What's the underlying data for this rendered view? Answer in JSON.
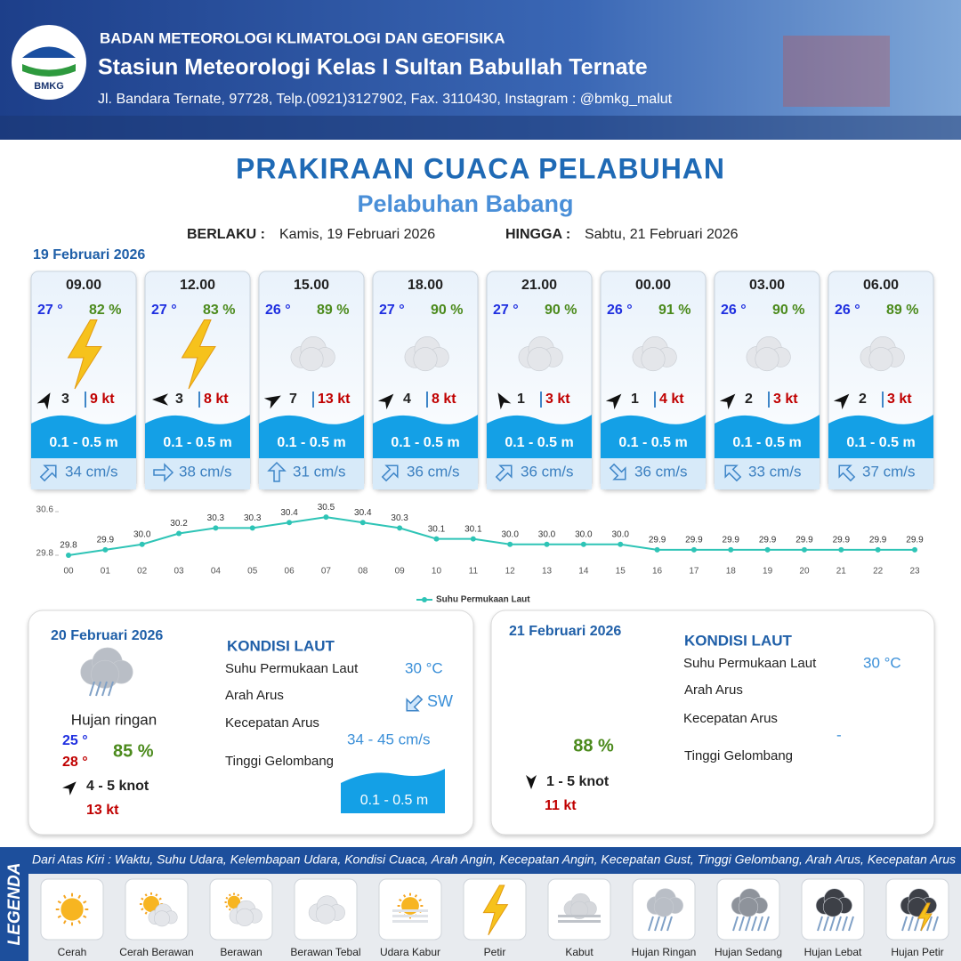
{
  "header": {
    "agency": "BADAN METEOROLOGI KLIMATOLOGI DAN GEOFISIKA",
    "station": "Stasiun Meteorologi Kelas I Sultan Babullah Ternate",
    "address": "Jl. Bandara Ternate, 97728, Telp.(0921)3127902, Fax. 3110430, Instagram : @bmkg_malut",
    "logo_text": "BMKG"
  },
  "title": "PRAKIRAAN CUACA PELABUHAN",
  "subtitle": "Pelabuhan Babang",
  "validity": {
    "from_label": "BERLAKU :",
    "from": "Kamis, 19 Februari 2026",
    "to_label": "HINGGA :",
    "to": "Sabtu, 21 Februari 2026"
  },
  "day1": {
    "date": "19 Februari 2026",
    "forecasts": [
      {
        "time": "09.00",
        "temp": "27 °",
        "humidity": "82 %",
        "wind": "3",
        "gust": "9 kt",
        "wave": "0.1 - 0.5 m",
        "current": "34 cm/s"
      },
      {
        "time": "12.00",
        "temp": "27 °",
        "humidity": "83 %",
        "wind": "3",
        "gust": "8 kt",
        "wave": "0.1 - 0.5 m",
        "current": "38 cm/s"
      },
      {
        "time": "15.00",
        "temp": "26 °",
        "humidity": "89 %",
        "wind": "7",
        "gust": "13 kt",
        "wave": "0.1 - 0.5 m",
        "current": "31 cm/s"
      },
      {
        "time": "18.00",
        "temp": "27 °",
        "humidity": "90 %",
        "wind": "4",
        "gust": "8 kt",
        "wave": "0.1 - 0.5 m",
        "current": "36 cm/s"
      },
      {
        "time": "21.00",
        "temp": "27 °",
        "humidity": "90 %",
        "wind": "1",
        "gust": "3 kt",
        "wave": "0.1 - 0.5 m",
        "current": "36 cm/s"
      },
      {
        "time": "00.00",
        "temp": "26 °",
        "humidity": "91 %",
        "wind": "1",
        "gust": "4 kt",
        "wave": "0.1 - 0.5 m",
        "current": "36 cm/s"
      },
      {
        "time": "03.00",
        "temp": "26 °",
        "humidity": "90 %",
        "wind": "2",
        "gust": "3 kt",
        "wave": "0.1 - 0.5 m",
        "current": "33 cm/s"
      },
      {
        "time": "06.00",
        "temp": "26 °",
        "humidity": "89 %",
        "wind": "2",
        "gust": "3 kt",
        "wave": "0.1 - 0.5 m",
        "current": "37 cm/s"
      }
    ]
  },
  "chart_data": {
    "type": "line",
    "categories": [
      "00",
      "01",
      "02",
      "03",
      "04",
      "05",
      "06",
      "07",
      "08",
      "09",
      "10",
      "11",
      "12",
      "13",
      "14",
      "15",
      "16",
      "17",
      "18",
      "19",
      "20",
      "21",
      "22",
      "23"
    ],
    "series": [
      {
        "name": "Suhu Permukaan Laut",
        "color": "#2ec4b6",
        "values": [
          29.8,
          29.9,
          30.0,
          30.2,
          30.3,
          30.3,
          30.4,
          30.5,
          30.4,
          30.3,
          30.1,
          30.1,
          30.0,
          30.0,
          30.0,
          30.0,
          29.9,
          29.9,
          29.9,
          29.9,
          29.9,
          29.9,
          29.9,
          29.9
        ],
        "value_labels": [
          "29.8",
          "29.9",
          "30.0",
          "30.2",
          "30.3",
          "30.3",
          "30.4",
          "30.5",
          "30.4",
          "30.3",
          "30.1",
          "30.1",
          "30.0",
          "30.0",
          "30.0",
          "30.0",
          "29.9",
          "29.9",
          "29.9",
          "29.9",
          "29.9",
          "29.9",
          "29.9",
          "29.9"
        ]
      }
    ],
    "ylim": [
      29.8,
      30.6
    ],
    "yticks": [
      29.8,
      30.6
    ],
    "legend": "bottom"
  },
  "day2": {
    "date": "20 Februari 2026",
    "condition": "Hujan ringan",
    "temp_min": "25 °",
    "temp_max": "28 °",
    "humidity": "85 %",
    "wind": "4  - 5 knot",
    "gust": "13 kt",
    "sea": {
      "heading": "KONDISI LAUT",
      "sst_label": "Suhu Permukaan Laut",
      "sst": "30 °C",
      "dir_label": "Arah Arus",
      "dir": "SW",
      "speed_label": "Kecepatan Arus",
      "speed": "34  - 45 cm/s",
      "wave_label": "Tinggi Gelombang",
      "wave": "0.1 - 0.5 m"
    }
  },
  "day3": {
    "date": "21 Februari 2026",
    "humidity": "88 %",
    "wind": "1  - 5 knot",
    "gust": "11 kt",
    "sea": {
      "heading": "KONDISI LAUT",
      "sst_label": "Suhu Permukaan Laut",
      "sst": "30 °C",
      "dir_label": "Arah Arus",
      "speed_label": "Kecepatan Arus",
      "speed": "-",
      "wave_label": "Tinggi Gelombang"
    }
  },
  "legend": {
    "title": "LEGENDA",
    "description": "Dari Atas Kiri : Waktu, Suhu Udara, Kelembapan Udara, Kondisi Cuaca, Arah Angin, Kecepatan Angin, Kecepatan Gust, Tinggi Gelombang, Arah Arus, Kecepatan Arus",
    "items": [
      "Cerah",
      "Cerah Berawan",
      "Berawan",
      "Berawan Tebal",
      "Udara Kabur",
      "Petir",
      "Kabut",
      "Hujan Ringan",
      "Hujan Sedang",
      "Hujan Lebat",
      "Hujan Petir"
    ]
  }
}
